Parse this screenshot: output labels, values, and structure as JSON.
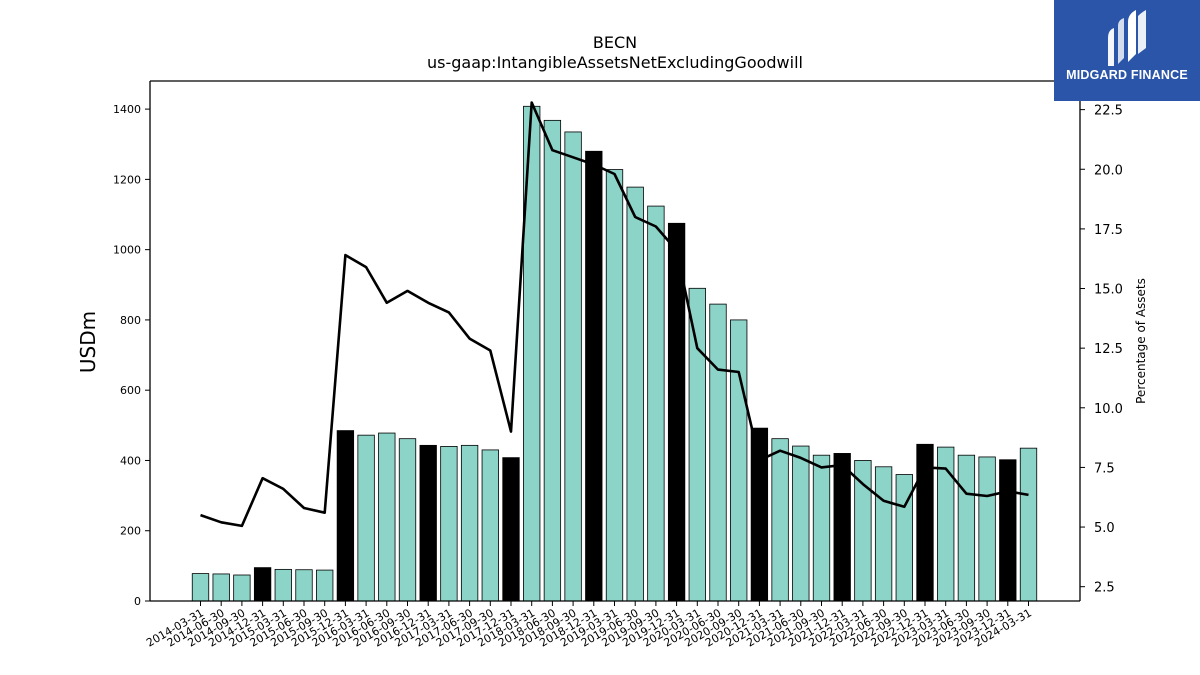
{
  "chart_data": {
    "type": "bar",
    "title": "BECN",
    "subtitle": "us-gaap:IntangibleAssetsNetExcludingGoodwill",
    "ylabel": "USDm",
    "ylabel_right": "Percentage of Assets",
    "ylim": [
      0,
      1480
    ],
    "ylim_right": [
      1.9,
      23.7
    ],
    "yticks": [
      "0",
      "200",
      "400",
      "600",
      "800",
      "1000",
      "1200",
      "1400"
    ],
    "yticks_right": [
      "2.5",
      "5.0",
      "7.5",
      "10.0",
      "12.5",
      "15.0",
      "17.5",
      "20.0",
      "22.5"
    ],
    "categories": [
      "2014-03-31",
      "2014-06-30",
      "2014-09-30",
      "2014-12-31",
      "2015-03-31",
      "2015-06-30",
      "2015-09-30",
      "2015-12-31",
      "2016-03-31",
      "2016-06-30",
      "2016-09-30",
      "2016-12-31",
      "2017-03-31",
      "2017-06-30",
      "2017-09-30",
      "2017-12-31",
      "2018-03-31",
      "2018-06-30",
      "2018-09-30",
      "2018-12-31",
      "2019-03-31",
      "2019-06-30",
      "2019-09-30",
      "2019-12-31",
      "2020-03-31",
      "2020-06-30",
      "2020-09-30",
      "2020-12-31",
      "2021-03-31",
      "2021-06-30",
      "2021-09-30",
      "2021-12-31",
      "2022-03-31",
      "2022-06-30",
      "2022-09-30",
      "2022-12-31",
      "2023-03-31",
      "2023-06-30",
      "2023-09-30",
      "2023-12-31",
      "2024-03-31"
    ],
    "series": [
      {
        "values": [
          78,
          77,
          74,
          95,
          90,
          89,
          88,
          485,
          472,
          478,
          462,
          443,
          440,
          443,
          430,
          408,
          1408,
          1368,
          1335,
          1280,
          1228,
          1178,
          1124,
          1075,
          890,
          845,
          800,
          492,
          462,
          441,
          415,
          420,
          400,
          382,
          360,
          446,
          438,
          415,
          410,
          402,
          435
        ]
      },
      {
        "axis": "right",
        "values": [
          5.5,
          5.2,
          5.05,
          7.05,
          6.6,
          5.8,
          5.6,
          16.4,
          15.9,
          14.4,
          14.9,
          14.4,
          14.0,
          12.9,
          12.4,
          9.0,
          22.8,
          20.8,
          20.5,
          20.2,
          19.8,
          18.0,
          17.6,
          16.6,
          12.5,
          11.6,
          11.5,
          7.8,
          8.2,
          7.9,
          7.5,
          7.6,
          6.8,
          6.1,
          5.85,
          7.5,
          7.45,
          6.4,
          6.3,
          6.5,
          6.35
        ]
      }
    ],
    "grid": false,
    "colors": {
      "bar": "#8dd4c8",
      "bar_highlight": "#000000",
      "line": "#000000"
    },
    "highlight_indices": [
      3,
      7,
      11,
      15,
      19,
      23,
      27,
      31,
      35,
      39
    ]
  },
  "logo": {
    "text": "MIDGARD FINANCE",
    "bg_color": "#2a55a8"
  }
}
